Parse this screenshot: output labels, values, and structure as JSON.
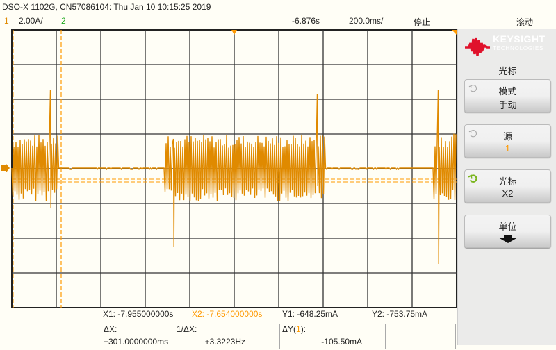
{
  "header": {
    "title": "DSO-X 1102G, CN57086104: Thu Jan 10 10:15:25 2019",
    "ch1_label": "1",
    "ch1_scale": "2.00A/",
    "ch2_label": "2",
    "time_offset": "-6.876s",
    "time_scale": "200.0ms/",
    "run_state": "停止",
    "mode": "滚动"
  },
  "colors": {
    "ch1": "#e08a00",
    "ch2": "#22aa22",
    "cursor": "#ff9900",
    "logo": "#e0112b"
  },
  "panel": {
    "brand": "KEYSIGHT",
    "brand_sub": "TECHNOLOGIES",
    "title": "光标",
    "buttons": [
      {
        "label": "模式",
        "value": "手动",
        "knob_icon": "rotate-knob-icon",
        "active": false
      },
      {
        "label": "源",
        "value": "1",
        "knob_icon": "rotate-knob-icon",
        "active": false
      },
      {
        "label": "光标",
        "value": "X2",
        "knob_icon": "rotate-knob-icon",
        "active": true
      },
      {
        "label": "单位",
        "value": "",
        "icon": "arrow-down-icon"
      }
    ]
  },
  "cursors": {
    "x1": "X1: -7.955000000s",
    "x2": "X2: -7.654000000s",
    "y1": "Y1: -648.25mA",
    "y2": "Y2: -753.75mA",
    "dx_label": "ΔX:",
    "dx_value": "+301.0000000ms",
    "inv_dx_label": "1/ΔX:",
    "inv_dx_value": "+3.3223Hz",
    "dy_label_pre": "ΔY(",
    "dy_label_ch": "1",
    "dy_label_post": "):",
    "dy_value": "-105.50mA"
  }
}
